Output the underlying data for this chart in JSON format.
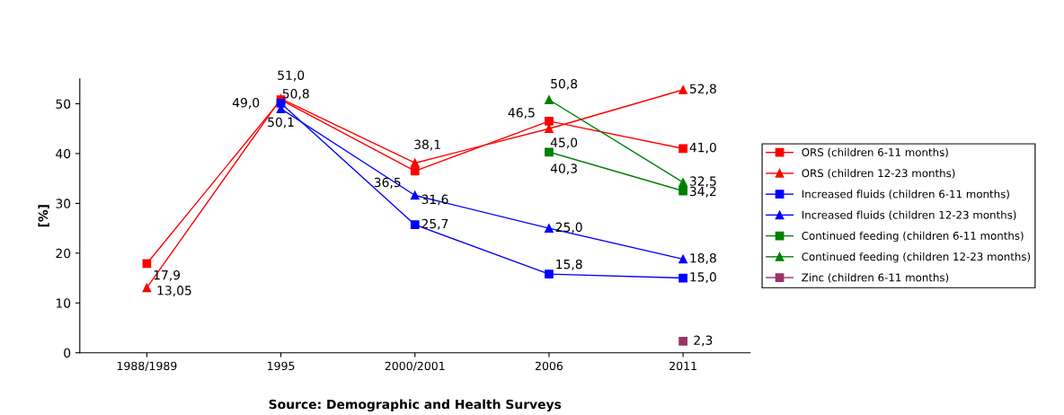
{
  "chart_data": {
    "type": "line",
    "ylabel": "[%]",
    "categories": [
      "1988/1989",
      "1995",
      "2000/2001",
      "2006",
      "2011"
    ],
    "ylim": [
      0,
      55
    ],
    "yticks": [
      0,
      10,
      20,
      30,
      40,
      50
    ],
    "grid": false,
    "legend": "right",
    "annotations": [
      "Source: Demographic and Health Surveys"
    ],
    "series": [
      {
        "name": "ORS (children 6-11 months)",
        "color": "#ff0000",
        "marker": "square",
        "values": [
          17.9,
          50.8,
          36.5,
          46.5,
          41.0
        ],
        "value_labels": [
          "17,9",
          "50,8",
          "36,5",
          "46,5",
          "41,0"
        ]
      },
      {
        "name": "ORS (children 12-23 months)",
        "color": "#ff0000",
        "marker": "triangle",
        "values": [
          13.05,
          51.0,
          38.1,
          45.0,
          52.8
        ],
        "value_labels": [
          "13,05",
          "51,0",
          "38,1",
          "45,0",
          "52,8"
        ]
      },
      {
        "name": "Increased fluids (children 6-11 months)",
        "color": "#0000ff",
        "marker": "square",
        "values": [
          null,
          50.1,
          25.7,
          15.8,
          15.0
        ],
        "value_labels": [
          null,
          "50,1",
          "25,7",
          "15,8",
          "15,0"
        ]
      },
      {
        "name": "Increased fluids (children 12-23 months)",
        "color": "#0000ff",
        "marker": "triangle",
        "values": [
          null,
          49.0,
          31.6,
          25.0,
          18.8
        ],
        "value_labels": [
          null,
          "49,0",
          "31,6",
          "25,0",
          "18,8"
        ]
      },
      {
        "name": "Continued feeding (children 6-11 months)",
        "color": "#008000",
        "marker": "square",
        "values": [
          null,
          null,
          null,
          40.3,
          32.5
        ],
        "value_labels": [
          null,
          null,
          null,
          "40,3",
          "32,5"
        ]
      },
      {
        "name": "Continued feeding (children 12-23 months)",
        "color": "#008000",
        "marker": "triangle",
        "values": [
          null,
          null,
          null,
          50.8,
          34.2
        ],
        "value_labels": [
          null,
          null,
          null,
          "50,8",
          "34,2"
        ]
      },
      {
        "name": "Zinc (children 6-11 months)",
        "color": "#993366",
        "marker": "square",
        "values": [
          null,
          null,
          null,
          null,
          2.3
        ],
        "value_labels": [
          null,
          null,
          null,
          null,
          "2,3"
        ]
      }
    ]
  }
}
